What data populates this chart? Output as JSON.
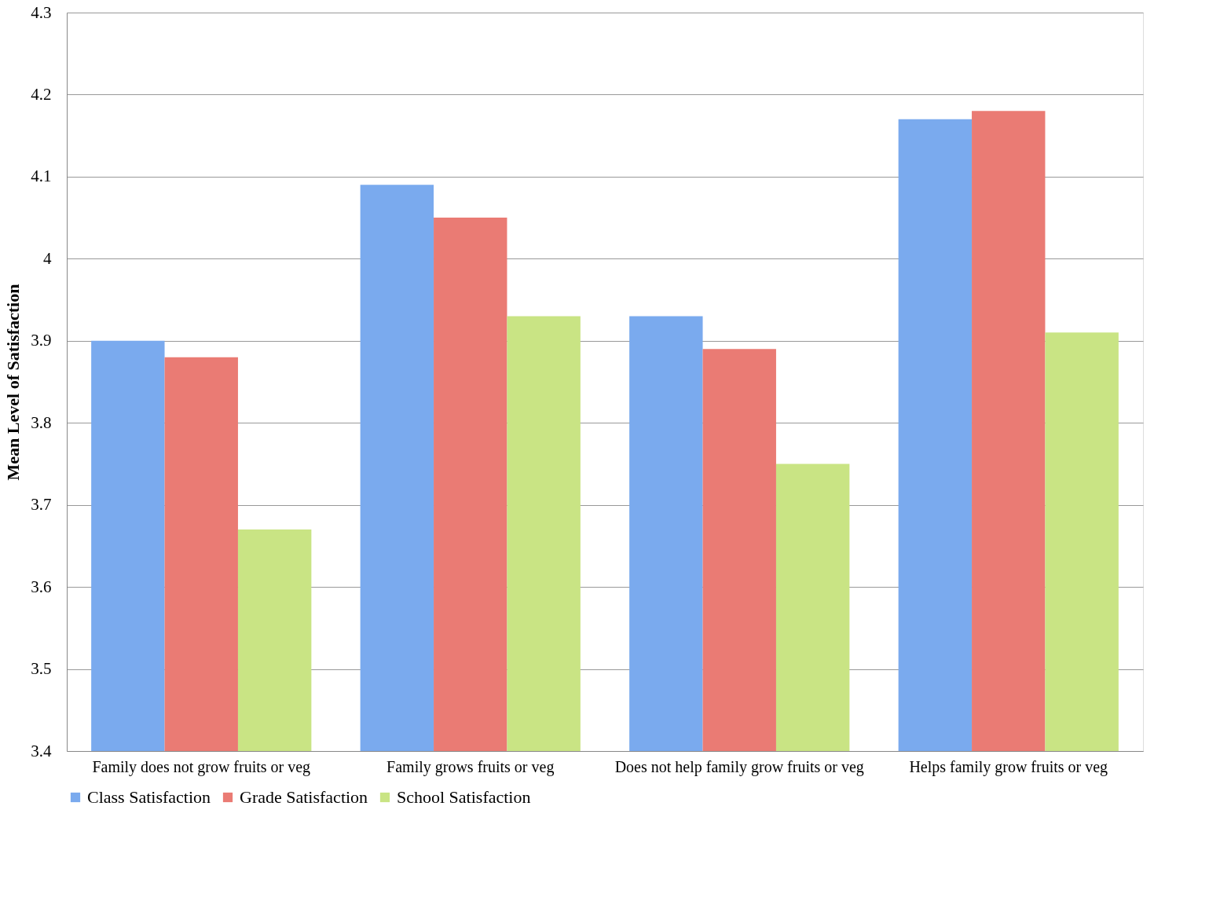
{
  "chart_data": {
    "type": "bar",
    "ylabel": "Mean Level of Satisfaction",
    "categories": [
      "Family does not grow fruits or veg",
      "Family grows fruits or veg",
      "Does not help family grow fruits or veg",
      "Helps family grow fruits or veg"
    ],
    "series": [
      {
        "name": "Class Satisfaction",
        "color": "#7aaaee",
        "values": [
          3.9,
          4.09,
          3.93,
          4.17
        ]
      },
      {
        "name": "Grade Satisfaction",
        "color": "#ea7b74",
        "values": [
          3.88,
          4.05,
          3.89,
          4.18
        ]
      },
      {
        "name": "School Satisfaction",
        "color": "#c9e484",
        "values": [
          3.67,
          3.93,
          3.75,
          3.91
        ]
      }
    ],
    "ylim": [
      3.4,
      4.3
    ],
    "yticks": [
      3.4,
      3.5,
      3.6,
      3.7,
      3.8,
      3.9,
      {
        "value": 4,
        "label": "4"
      },
      4.1,
      4.2,
      4.3
    ],
    "grid": "y",
    "legend": "bottom"
  }
}
